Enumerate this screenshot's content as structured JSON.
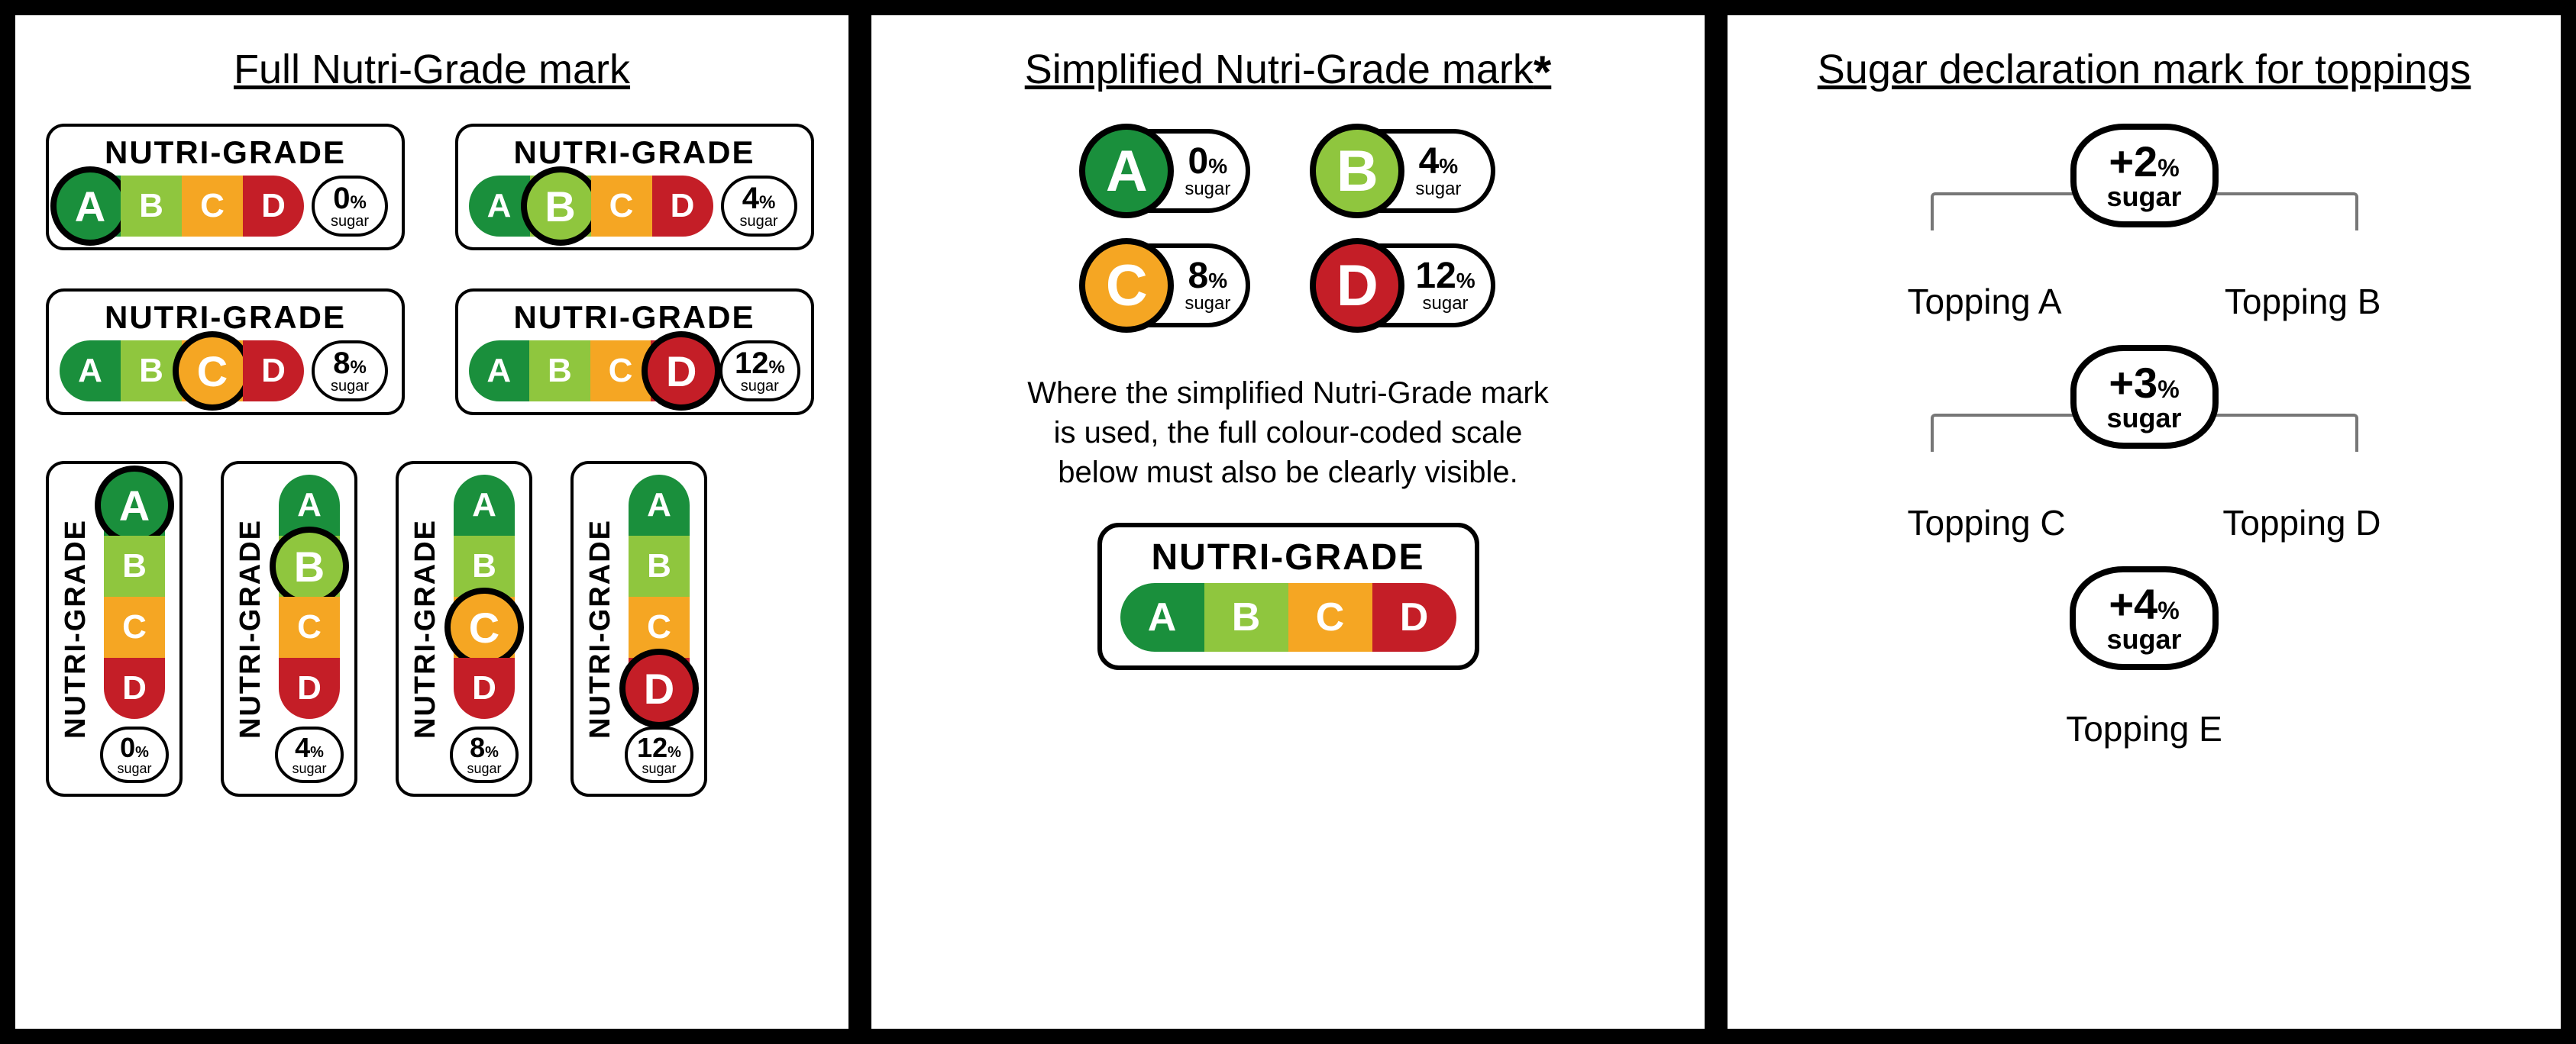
{
  "colors": {
    "A": "#1a8f3c",
    "B": "#8fc63e",
    "C": "#f5a623",
    "D": "#c41e27"
  },
  "header": "NUTRI-GRADE",
  "panel1": {
    "title": "Full Nutri-Grade mark",
    "grades": [
      "A",
      "B",
      "C",
      "D"
    ],
    "sugar": {
      "A": "0",
      "B": "4",
      "C": "8",
      "D": "12"
    },
    "sugar_word": "sugar",
    "pct": "%"
  },
  "panel2": {
    "title": "Simplified Nutri-Grade mark",
    "asterisk": "*",
    "items": [
      {
        "g": "A",
        "val": "0"
      },
      {
        "g": "B",
        "val": "4"
      },
      {
        "g": "C",
        "val": "8"
      },
      {
        "g": "D",
        "val": "12"
      }
    ],
    "note_l1": "Where the simplified Nutri-Grade mark",
    "note_l2": "is used, the full colour-coded scale",
    "note_l3": "below must also be clearly visible."
  },
  "panel3": {
    "title": "Sugar declaration mark for toppings",
    "groups": [
      {
        "val": "+2",
        "labels": [
          "Topping A",
          "Topping B"
        ]
      },
      {
        "val": "+3",
        "labels": [
          "Topping C",
          "Topping D"
        ]
      }
    ],
    "single": {
      "val": "+4",
      "label": "Topping E"
    }
  }
}
